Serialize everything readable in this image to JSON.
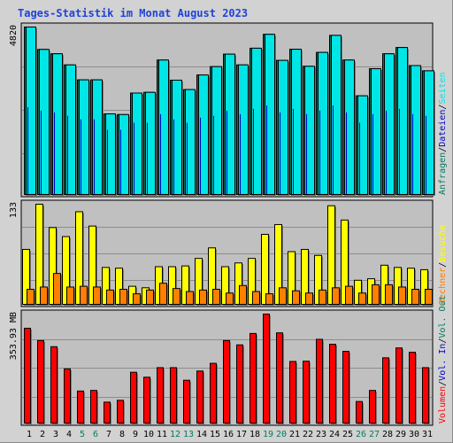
{
  "title": "Tages-Statistik im Monat August 2023",
  "colors": {
    "frame_bg": "#d2d2d2",
    "panel_bg": "#c0c0c0",
    "grid": "#8c8c8c",
    "hits": "#007c5e",
    "files": "#0000cc",
    "pages": "#00e5e5",
    "visits": "#ffff00",
    "sites": "#ff7f00",
    "kbytes": "#ff0000",
    "kbytes_in": "#0000cc",
    "kbytes_out": "#007c5e",
    "weekend": "#007c5e",
    "weekday": "#000000"
  },
  "chart_data": [
    {
      "type": "bar",
      "panel": "requests",
      "y_axis_label": "4820",
      "ylim": [
        0,
        4820
      ],
      "categories": [
        "1",
        "2",
        "3",
        "4",
        "5",
        "6",
        "7",
        "8",
        "9",
        "10",
        "11",
        "12",
        "13",
        "14",
        "15",
        "16",
        "17",
        "18",
        "19",
        "20",
        "21",
        "22",
        "23",
        "24",
        "25",
        "26",
        "27",
        "28",
        "29",
        "30",
        "31"
      ],
      "series": [
        {
          "name": "Anfragen",
          "color": "#007c5e",
          "values": [
            4820,
            4175,
            4050,
            3730,
            3300,
            3300,
            2320,
            2300,
            2920,
            2940,
            3870,
            3290,
            3020,
            3440,
            3680,
            4040,
            3730,
            4210,
            4610,
            3860,
            4180,
            3690,
            4090,
            4580,
            3870,
            2840,
            3620,
            4050,
            4230,
            3710,
            3560
          ]
        },
        {
          "name": "Dateien",
          "color": "#0000cc",
          "values": [
            2500,
            2400,
            2350,
            2250,
            2150,
            2150,
            1850,
            1850,
            2050,
            2050,
            2300,
            2150,
            2050,
            2200,
            2250,
            2400,
            2300,
            2450,
            2550,
            2350,
            2450,
            2300,
            2400,
            2550,
            2350,
            2050,
            2300,
            2400,
            2450,
            2300,
            2250
          ]
        },
        {
          "name": "Seiten",
          "color": "#00e5e5",
          "values": [
            4820,
            4175,
            4050,
            3730,
            3300,
            3300,
            2320,
            2300,
            2920,
            2940,
            3870,
            3290,
            3020,
            3440,
            3680,
            4040,
            3730,
            4210,
            4610,
            3860,
            4180,
            3690,
            4090,
            4580,
            3870,
            2840,
            3620,
            4050,
            4230,
            3710,
            3560
          ]
        }
      ]
    },
    {
      "type": "bar",
      "panel": "visits",
      "y_axis_label": "133",
      "ylim": [
        0,
        133
      ],
      "categories": [
        "1",
        "2",
        "3",
        "4",
        "5",
        "6",
        "7",
        "8",
        "9",
        "10",
        "11",
        "12",
        "13",
        "14",
        "15",
        "16",
        "17",
        "18",
        "19",
        "20",
        "21",
        "22",
        "23",
        "24",
        "25",
        "26",
        "27",
        "28",
        "29",
        "30",
        "31"
      ],
      "series": [
        {
          "name": "Besuche",
          "color": "#ffff00",
          "values": [
            73,
            133,
            102,
            90,
            123,
            104,
            49,
            48,
            24,
            22,
            50,
            50,
            51,
            61,
            75,
            50,
            55,
            61,
            93,
            106,
            70,
            73,
            65,
            131,
            112,
            32,
            34,
            52,
            49,
            48,
            46
          ]
        },
        {
          "name": "Rechner",
          "color": "#ff7f00",
          "values": [
            20,
            23,
            41,
            23,
            24,
            23,
            19,
            20,
            14,
            19,
            28,
            21,
            17,
            19,
            20,
            15,
            25,
            17,
            14,
            22,
            18,
            15,
            19,
            22,
            24,
            15,
            26,
            26,
            23,
            20,
            20
          ]
        }
      ]
    },
    {
      "type": "bar",
      "panel": "volume",
      "y_axis_label": "353.93 MB",
      "ylim": [
        0,
        353.93
      ],
      "categories": [
        "1",
        "2",
        "3",
        "4",
        "5",
        "6",
        "7",
        "8",
        "9",
        "10",
        "11",
        "12",
        "13",
        "14",
        "15",
        "16",
        "17",
        "18",
        "19",
        "20",
        "21",
        "22",
        "23",
        "24",
        "25",
        "26",
        "27",
        "28",
        "29",
        "30",
        "31"
      ],
      "series": [
        {
          "name": "Volumen",
          "color": "#ff0000",
          "values": [
            308,
            268,
            248,
            176,
            104,
            106,
            68,
            74,
            165,
            149,
            180,
            180,
            139,
            169,
            194,
            268,
            254,
            291,
            354,
            293,
            200,
            201,
            272,
            256,
            233,
            70,
            106,
            212,
            244,
            230,
            180
          ]
        }
      ]
    }
  ],
  "x_labels": [
    {
      "text": "1",
      "weekend": false
    },
    {
      "text": "2",
      "weekend": false
    },
    {
      "text": "3",
      "weekend": false
    },
    {
      "text": "4",
      "weekend": false
    },
    {
      "text": "5",
      "weekend": true
    },
    {
      "text": "6",
      "weekend": true
    },
    {
      "text": "7",
      "weekend": false
    },
    {
      "text": "8",
      "weekend": false
    },
    {
      "text": "9",
      "weekend": false
    },
    {
      "text": "10",
      "weekend": false
    },
    {
      "text": "11",
      "weekend": false
    },
    {
      "text": "12",
      "weekend": true
    },
    {
      "text": "13",
      "weekend": true
    },
    {
      "text": "14",
      "weekend": false
    },
    {
      "text": "15",
      "weekend": false
    },
    {
      "text": "16",
      "weekend": false
    },
    {
      "text": "17",
      "weekend": false
    },
    {
      "text": "18",
      "weekend": false
    },
    {
      "text": "19",
      "weekend": true
    },
    {
      "text": "20",
      "weekend": true
    },
    {
      "text": "21",
      "weekend": false
    },
    {
      "text": "22",
      "weekend": false
    },
    {
      "text": "23",
      "weekend": false
    },
    {
      "text": "24",
      "weekend": false
    },
    {
      "text": "25",
      "weekend": false
    },
    {
      "text": "26",
      "weekend": true
    },
    {
      "text": "27",
      "weekend": true
    },
    {
      "text": "28",
      "weekend": false
    },
    {
      "text": "29",
      "weekend": false
    },
    {
      "text": "30",
      "weekend": false
    },
    {
      "text": "31",
      "weekend": false
    }
  ],
  "right_legends": [
    {
      "panel": "requests",
      "parts": [
        {
          "text": "Anfragen",
          "color": "#007c5e"
        },
        {
          "text": "/",
          "color": "#000000"
        },
        {
          "text": "Dateien",
          "color": "#0000cc"
        },
        {
          "text": "/",
          "color": "#000000"
        },
        {
          "text": "Seiten",
          "color": "#00e5e5"
        }
      ]
    },
    {
      "panel": "visits",
      "parts": [
        {
          "text": "Rechner",
          "color": "#ff7f00"
        },
        {
          "text": "/",
          "color": "#000000"
        },
        {
          "text": "Besuche",
          "color": "#ffff00"
        }
      ]
    },
    {
      "panel": "volume",
      "parts": [
        {
          "text": "Volumen",
          "color": "#ff0000"
        },
        {
          "text": "/",
          "color": "#000000"
        },
        {
          "text": "Vol. In",
          "color": "#0000cc"
        },
        {
          "text": "/",
          "color": "#000000"
        },
        {
          "text": "Vol. Out",
          "color": "#007c5e"
        }
      ]
    }
  ]
}
